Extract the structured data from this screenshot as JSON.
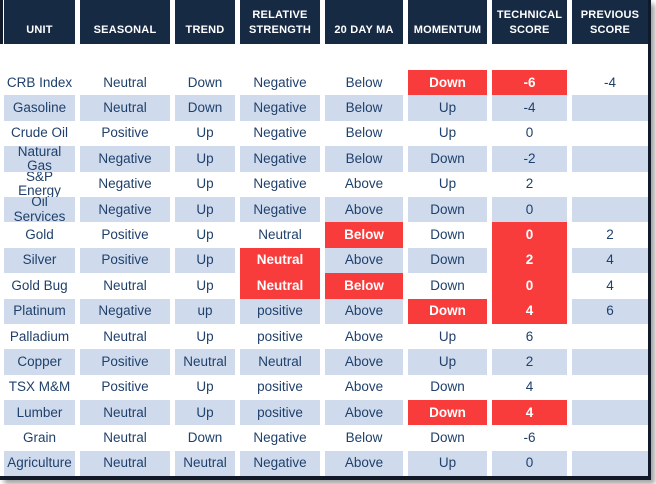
{
  "table": {
    "name": "technical-score-table",
    "columns": [
      {
        "key": "unit",
        "label": "UNIT"
      },
      {
        "key": "seasonal",
        "label": "SEASONAL"
      },
      {
        "key": "trend",
        "label": "TREND"
      },
      {
        "key": "rs",
        "label": "RELATIVE STRENGTH"
      },
      {
        "key": "ma",
        "label": "20 DAY MA"
      },
      {
        "key": "momentum",
        "label": "MOMENTUM"
      },
      {
        "key": "tech",
        "label": "TECHNICAL SCORE"
      },
      {
        "key": "prev",
        "label": "PREVIOUS SCORE"
      }
    ],
    "rows": [
      {
        "unit": "CRB Index",
        "seasonal": "Neutral",
        "trend": "Down",
        "rs": "Negative",
        "ma": "Below",
        "momentum": "Down",
        "tech": "-6",
        "prev": "-4",
        "hl": [
          "momentum",
          "tech"
        ]
      },
      {
        "unit": "Gasoline",
        "seasonal": "Neutral",
        "trend": "Down",
        "rs": "Negative",
        "ma": "Below",
        "momentum": "Up",
        "tech": "-4",
        "prev": "",
        "hl": []
      },
      {
        "unit": "Crude Oil",
        "seasonal": "Positive",
        "trend": "Up",
        "rs": "Negative",
        "ma": "Below",
        "momentum": "Up",
        "tech": "0",
        "prev": "",
        "hl": []
      },
      {
        "unit": "Natural Gas",
        "seasonal": "Negative",
        "trend": "Up",
        "rs": "Negative",
        "ma": "Below",
        "momentum": "Down",
        "tech": "-2",
        "prev": "",
        "hl": []
      },
      {
        "unit": "S&P Energy",
        "seasonal": "Negative",
        "trend": "Up",
        "rs": "Negative",
        "ma": "Above",
        "momentum": "Up",
        "tech": "2",
        "prev": "",
        "hl": []
      },
      {
        "unit": "Oil Services",
        "seasonal": "Negative",
        "trend": "Up",
        "rs": "Negative",
        "ma": "Above",
        "momentum": "Down",
        "tech": "0",
        "prev": "",
        "hl": []
      },
      {
        "unit": "Gold",
        "seasonal": "Positive",
        "trend": "Up",
        "rs": "Neutral",
        "ma": "Below",
        "momentum": "Down",
        "tech": "0",
        "prev": "2",
        "hl": [
          "ma",
          "tech"
        ]
      },
      {
        "unit": "Silver",
        "seasonal": "Positive",
        "trend": "Up",
        "rs": "Neutral",
        "ma": "Above",
        "momentum": "Down",
        "tech": "2",
        "prev": "4",
        "hl": [
          "rs",
          "tech"
        ]
      },
      {
        "unit": "Gold Bug",
        "seasonal": "Neutral",
        "trend": "Up",
        "rs": "Neutral",
        "ma": "Below",
        "momentum": "Down",
        "tech": "0",
        "prev": "4",
        "hl": [
          "rs",
          "ma",
          "tech"
        ]
      },
      {
        "unit": "Platinum",
        "seasonal": "Negative",
        "trend": "up",
        "rs": "positive",
        "ma": "Above",
        "momentum": "Down",
        "tech": "4",
        "prev": "6",
        "hl": [
          "momentum",
          "tech"
        ]
      },
      {
        "unit": "Palladium",
        "seasonal": "Neutral",
        "trend": "Up",
        "rs": "positive",
        "ma": "Above",
        "momentum": "Up",
        "tech": "6",
        "prev": "",
        "hl": []
      },
      {
        "unit": "Copper",
        "seasonal": "Positive",
        "trend": "Neutral",
        "rs": "Neutral",
        "ma": "Above",
        "momentum": "Up",
        "tech": "2",
        "prev": "",
        "hl": []
      },
      {
        "unit": "TSX M&M",
        "seasonal": "Positive",
        "trend": "Up",
        "rs": "positive",
        "ma": "Above",
        "momentum": "Down",
        "tech": "4",
        "prev": "",
        "hl": []
      },
      {
        "unit": "Lumber",
        "seasonal": "Neutral",
        "trend": "Up",
        "rs": "positive",
        "ma": "Above",
        "momentum": "Down",
        "tech": "4",
        "prev": "",
        "hl": [
          "momentum",
          "tech"
        ]
      },
      {
        "unit": "Grain",
        "seasonal": "Neutral",
        "trend": "Down",
        "rs": "Negative",
        "ma": "Below",
        "momentum": "Down",
        "tech": "-6",
        "prev": "",
        "hl": []
      },
      {
        "unit": "Agriculture",
        "seasonal": "Neutral",
        "trend": "Neutral",
        "rs": "Negative",
        "ma": "Above",
        "momentum": "Up",
        "tech": "0",
        "prev": "",
        "hl": []
      }
    ]
  },
  "colors": {
    "header_bg": "#172a44",
    "stripe_blue": "#cfdbed",
    "highlight_red": "#f83b3b",
    "text_navy": "#1f406b",
    "border_dark": "#121a29"
  }
}
